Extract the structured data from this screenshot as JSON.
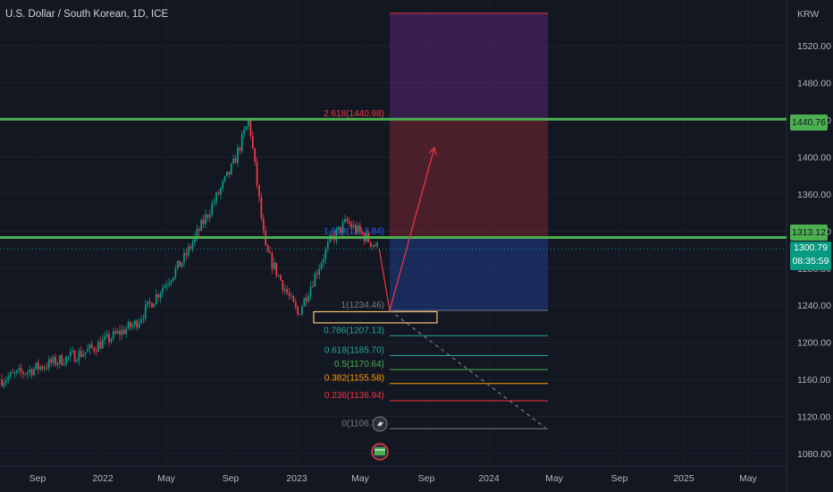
{
  "header": {
    "title": "U.S. Dollar / South Korean, 1D, ICE"
  },
  "axis": {
    "currency": "KRW"
  },
  "badges": {
    "resistance_high": "1440.76",
    "resistance_mid": "1313.12",
    "last_price": "1300.79",
    "countdown": "08:35:59"
  },
  "colors": {
    "background": "#131722",
    "up_candle": "#089981",
    "down_candle": "#f23645",
    "level_line": "#4caf50",
    "projection_arrow": "#f23645"
  },
  "chart_data": {
    "type": "candlestick",
    "title": "U.S. Dollar / South Korean, 1D, ICE",
    "y_unit": "KRW",
    "ylim": [
      1070,
      1560
    ],
    "y_ticks": [
      1080,
      1120,
      1160,
      1200,
      1240,
      1280,
      1320,
      1360,
      1400,
      1440,
      1480,
      1520
    ],
    "y_tick_labels": [
      "1080.00",
      "1120.00",
      "1160.00",
      "1200.00",
      "1240.00",
      "1280.00",
      "1320.00",
      "1360.00",
      "1400.00",
      "1440.00",
      "1480.00",
      "1520.00"
    ],
    "x_ticks": [
      "Sep",
      "2022",
      "May",
      "Sep",
      "2023",
      "May",
      "Sep",
      "2024",
      "May",
      "Sep",
      "2025",
      "May"
    ],
    "price_anchors": [
      {
        "date": "2021-08",
        "close": 1160
      },
      {
        "date": "2021-12",
        "close": 1190
      },
      {
        "date": "2022-03",
        "close": 1220
      },
      {
        "date": "2022-06",
        "close": 1290
      },
      {
        "date": "2022-09",
        "close": 1390
      },
      {
        "date": "2022-10",
        "close": 1440
      },
      {
        "date": "2022-11",
        "close": 1300
      },
      {
        "date": "2023-01",
        "close": 1230
      },
      {
        "date": "2023-03",
        "close": 1310
      },
      {
        "date": "2023-04",
        "close": 1330
      },
      {
        "date": "2023-06",
        "close": 1301
      }
    ],
    "horizontal_levels": [
      1440.76,
      1313.12
    ],
    "last_price": 1300.79,
    "fibonacci": [
      {
        "ratio": "2.618",
        "price": "1440.98",
        "label": "2.618(1440.98)",
        "color": "#f23645"
      },
      {
        "ratio": "1.618",
        "price": "1313.84",
        "label": "1.618(1313.84)",
        "color": "#2962ff"
      },
      {
        "ratio": "1",
        "price": "1234.46",
        "label": "1(1234.46)",
        "color": "#787b86"
      },
      {
        "ratio": "0.786",
        "price": "1207.13",
        "label": "0.786(1207.13)",
        "color": "#26a69a"
      },
      {
        "ratio": "0.618",
        "price": "1185.70",
        "label": "0.618(1185.70)",
        "color": "#26a69a"
      },
      {
        "ratio": "0.5",
        "price": "1170.64",
        "label": "0.5(1170.64)",
        "color": "#4caf50"
      },
      {
        "ratio": "0.382",
        "price": "1155.58",
        "label": "0.382(1155.58)",
        "color": "#ff9800"
      },
      {
        "ratio": "0.236",
        "price": "1136.94",
        "label": "0.236(1136.94)",
        "color": "#f23645"
      },
      {
        "ratio": "0",
        "price": "1106.77",
        "label": "0(1106.77)",
        "color": "#787b86"
      }
    ],
    "projection": {
      "from": 1234.46,
      "to": 1410
    }
  }
}
